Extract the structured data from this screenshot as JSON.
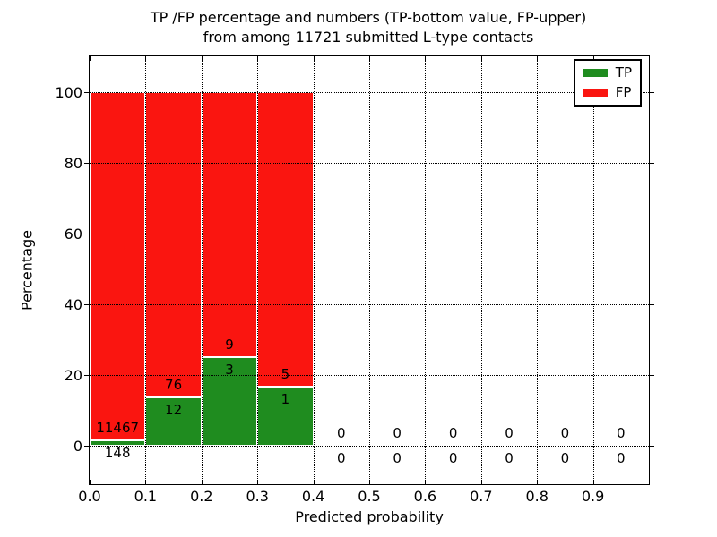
{
  "title": {
    "line1": "TP /FP percentage and numbers (TP-bottom value, FP-upper)",
    "line2": "from among 11721 submitted L-type contacts"
  },
  "axes": {
    "xlabel": "Predicted probability",
    "ylabel": "Percentage",
    "x_ticks": [
      {
        "v": 0.0,
        "label": "0.0"
      },
      {
        "v": 0.1,
        "label": "0.1"
      },
      {
        "v": 0.2,
        "label": "0.2"
      },
      {
        "v": 0.3,
        "label": "0.3"
      },
      {
        "v": 0.4,
        "label": "0.4"
      },
      {
        "v": 0.5,
        "label": "0.5"
      },
      {
        "v": 0.6,
        "label": "0.6"
      },
      {
        "v": 0.7,
        "label": "0.7"
      },
      {
        "v": 0.8,
        "label": "0.8"
      },
      {
        "v": 0.9,
        "label": "0.9"
      }
    ],
    "y_ticks": [
      {
        "v": 0,
        "label": "0"
      },
      {
        "v": 20,
        "label": "20"
      },
      {
        "v": 40,
        "label": "40"
      },
      {
        "v": 60,
        "label": "60"
      },
      {
        "v": 80,
        "label": "80"
      },
      {
        "v": 100,
        "label": "100"
      }
    ],
    "grid": true
  },
  "legend": {
    "position": "upper right",
    "items": [
      {
        "label": "TP",
        "color": "#1f8c1f"
      },
      {
        "label": "FP",
        "color": "#fa1510"
      }
    ]
  },
  "colors": {
    "tp": "#1f8c1f",
    "fp": "#fa1510",
    "bar_edge": "#ffffff",
    "grid": "#000000"
  },
  "chart_data": {
    "type": "bar",
    "stacked": true,
    "xlim": [
      0.0,
      1.0
    ],
    "ylim": [
      -11,
      110
    ],
    "total_submitted": 11721,
    "bins": [
      {
        "x0": 0.0,
        "x1": 0.1,
        "tp": 148,
        "fp": 11467,
        "tp_pct": 1.3,
        "top_pct": 100
      },
      {
        "x0": 0.1,
        "x1": 0.2,
        "tp": 12,
        "fp": 76,
        "tp_pct": 13.6,
        "top_pct": 100
      },
      {
        "x0": 0.2,
        "x1": 0.3,
        "tp": 3,
        "fp": 9,
        "tp_pct": 25.0,
        "top_pct": 100
      },
      {
        "x0": 0.3,
        "x1": 0.4,
        "tp": 1,
        "fp": 5,
        "tp_pct": 16.7,
        "top_pct": 100
      },
      {
        "x0": 0.4,
        "x1": 0.5,
        "tp": 0,
        "fp": 0,
        "tp_pct": 0,
        "top_pct": 0
      },
      {
        "x0": 0.5,
        "x1": 0.6,
        "tp": 0,
        "fp": 0,
        "tp_pct": 0,
        "top_pct": 0
      },
      {
        "x0": 0.6,
        "x1": 0.7,
        "tp": 0,
        "fp": 0,
        "tp_pct": 0,
        "top_pct": 0
      },
      {
        "x0": 0.7,
        "x1": 0.8,
        "tp": 0,
        "fp": 0,
        "tp_pct": 0,
        "top_pct": 0
      },
      {
        "x0": 0.8,
        "x1": 0.9,
        "tp": 0,
        "fp": 0,
        "tp_pct": 0,
        "top_pct": 0
      },
      {
        "x0": 0.9,
        "x1": 1.0,
        "tp": 0,
        "fp": 0,
        "tp_pct": 0,
        "top_pct": 0
      }
    ]
  }
}
